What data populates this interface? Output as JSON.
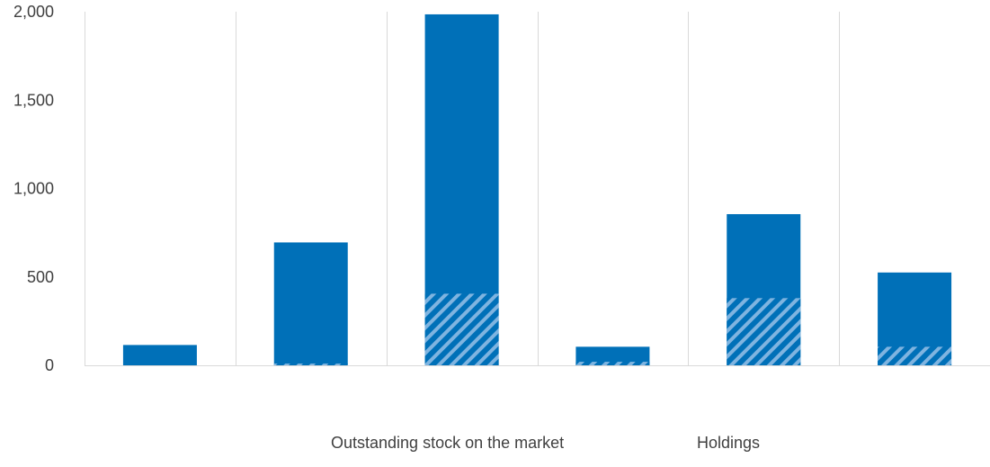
{
  "chart_data": {
    "type": "bar",
    "stacked_overlay": true,
    "categories": [
      "",
      "",
      "",
      "",
      "",
      ""
    ],
    "series": [
      {
        "name": "Outstanding stock on the market",
        "values": [
          115,
          695,
          1985,
          105,
          855,
          525
        ]
      },
      {
        "name": "Holdings",
        "values": [
          0,
          10,
          405,
          20,
          380,
          105
        ]
      }
    ],
    "ylim": [
      0,
      2000
    ],
    "yticks": [
      0,
      500,
      1000,
      1500,
      2000
    ],
    "ytick_labels": [
      "0",
      "500",
      "1,000",
      "1,500",
      "2,000"
    ],
    "grid": "vertical",
    "legend_position": "bottom",
    "colors": {
      "bar": "#0070b8",
      "hatch": "#7fb4e0",
      "grid": "#d9d9d9",
      "text": "#404040"
    }
  }
}
